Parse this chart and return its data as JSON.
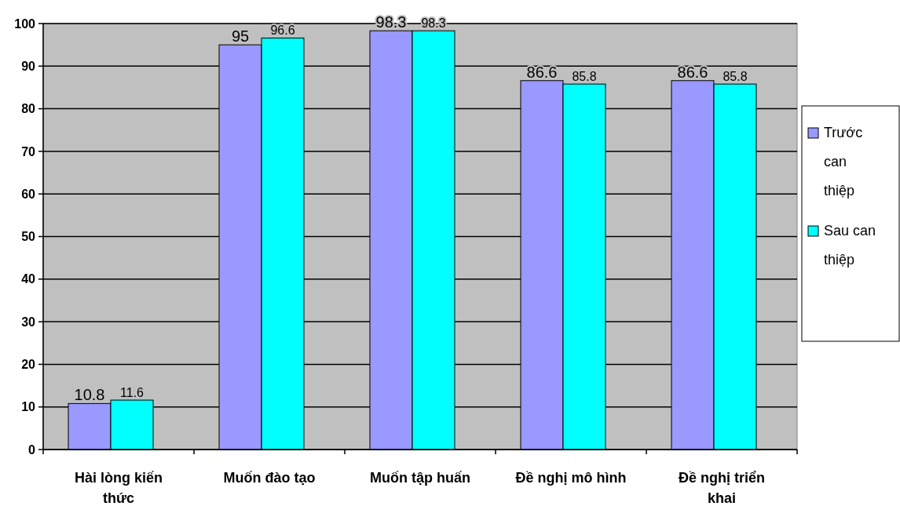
{
  "chart_data": {
    "type": "bar",
    "categories": [
      "Hài lòng kiến thức",
      "Muốn đào tạo",
      "Muốn tập huấn",
      "Đề nghị mô hình",
      "Đề nghị triển khai"
    ],
    "series": [
      {
        "name": "Trước can thiệp",
        "color": "#9999ff",
        "values": [
          10.8,
          95,
          98.3,
          86.6,
          86.6
        ]
      },
      {
        "name": "Sau can thiệp",
        "color": "#00ffff",
        "values": [
          11.6,
          96.6,
          98.3,
          85.8,
          85.8
        ]
      }
    ],
    "ylim": [
      0,
      100
    ],
    "yticks": [
      0,
      10,
      20,
      30,
      40,
      50,
      60,
      70,
      80,
      90,
      100
    ],
    "grid": "y",
    "legend": "right",
    "data_labels": true
  }
}
